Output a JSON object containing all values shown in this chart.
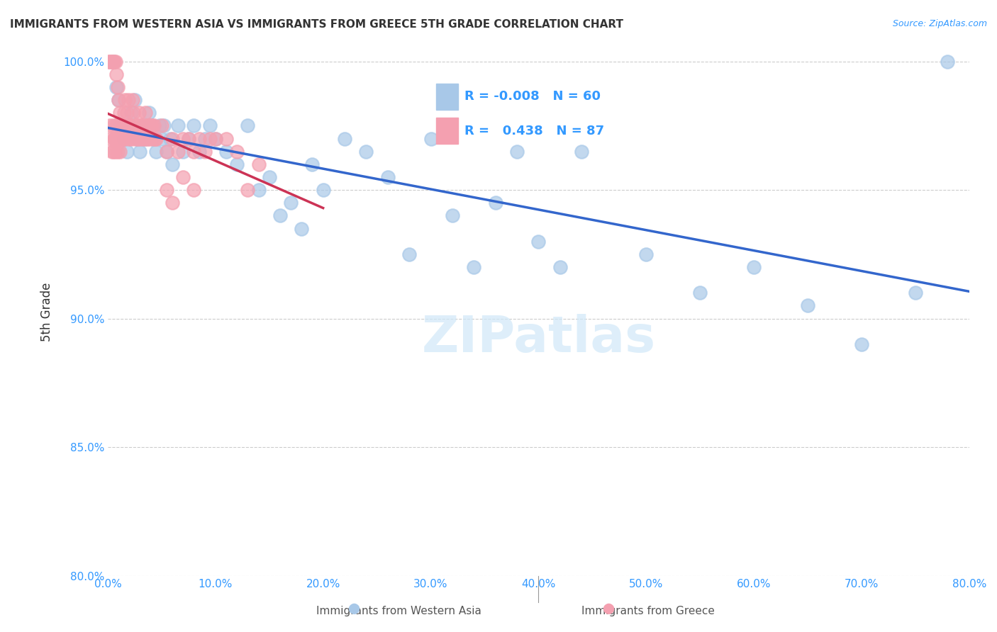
{
  "title": "IMMIGRANTS FROM WESTERN ASIA VS IMMIGRANTS FROM GREECE 5TH GRADE CORRELATION CHART",
  "source": "Source: ZipAtlas.com",
  "xlabel_bottom": "",
  "ylabel": "5th Grade",
  "legend_label1": "Immigrants from Western Asia",
  "legend_label2": "Immigrants from Greece",
  "r1": -0.008,
  "n1": 60,
  "r2": 0.438,
  "n2": 87,
  "color1": "#a8c8e8",
  "color2": "#f4a0b0",
  "trend_color1": "#3366cc",
  "trend_color2": "#cc3355",
  "xmin": 0.0,
  "xmax": 0.8,
  "ymin": 0.8,
  "ymax": 1.005,
  "xtick_labels": [
    "0.0%",
    "10.0%",
    "20.0%",
    "30.0%",
    "40.0%",
    "50.0%",
    "60.0%",
    "70.0%",
    "80.0%"
  ],
  "xtick_values": [
    0.0,
    0.1,
    0.2,
    0.3,
    0.4,
    0.5,
    0.6,
    0.7,
    0.8
  ],
  "ytick_labels": [
    "80.0%",
    "85.0%",
    "90.0%",
    "95.0%",
    "100.0%"
  ],
  "ytick_values": [
    0.8,
    0.85,
    0.9,
    0.95,
    1.0
  ],
  "western_asia_x": [
    0.005,
    0.008,
    0.01,
    0.012,
    0.015,
    0.018,
    0.02,
    0.022,
    0.025,
    0.028,
    0.03,
    0.032,
    0.035,
    0.038,
    0.04,
    0.042,
    0.045,
    0.048,
    0.05,
    0.052,
    0.055,
    0.058,
    0.06,
    0.065,
    0.07,
    0.075,
    0.08,
    0.085,
    0.09,
    0.095,
    0.1,
    0.11,
    0.12,
    0.13,
    0.14,
    0.15,
    0.16,
    0.17,
    0.18,
    0.19,
    0.2,
    0.22,
    0.24,
    0.26,
    0.28,
    0.3,
    0.32,
    0.34,
    0.36,
    0.38,
    0.4,
    0.42,
    0.44,
    0.5,
    0.55,
    0.6,
    0.65,
    0.7,
    0.75,
    0.78
  ],
  "western_asia_y": [
    1.0,
    0.99,
    0.985,
    0.975,
    0.97,
    0.965,
    0.975,
    0.98,
    0.985,
    0.97,
    0.965,
    0.975,
    0.97,
    0.98,
    0.975,
    0.97,
    0.965,
    0.975,
    0.97,
    0.975,
    0.965,
    0.97,
    0.96,
    0.975,
    0.965,
    0.97,
    0.975,
    0.965,
    0.97,
    0.975,
    0.97,
    0.965,
    0.96,
    0.975,
    0.95,
    0.955,
    0.94,
    0.945,
    0.935,
    0.96,
    0.95,
    0.97,
    0.965,
    0.955,
    0.925,
    0.97,
    0.94,
    0.92,
    0.945,
    0.965,
    0.93,
    0.92,
    0.965,
    0.925,
    0.91,
    0.92,
    0.905,
    0.89,
    0.91,
    1.0
  ],
  "greece_x": [
    0.001,
    0.002,
    0.003,
    0.004,
    0.005,
    0.006,
    0.007,
    0.008,
    0.009,
    0.01,
    0.011,
    0.012,
    0.013,
    0.014,
    0.015,
    0.016,
    0.017,
    0.018,
    0.019,
    0.02,
    0.021,
    0.022,
    0.023,
    0.024,
    0.025,
    0.026,
    0.027,
    0.028,
    0.029,
    0.03,
    0.031,
    0.032,
    0.033,
    0.034,
    0.035,
    0.036,
    0.037,
    0.038,
    0.039,
    0.04,
    0.041,
    0.042,
    0.043,
    0.044,
    0.045,
    0.05,
    0.055,
    0.06,
    0.065,
    0.07,
    0.075,
    0.08,
    0.085,
    0.09,
    0.095,
    0.1,
    0.11,
    0.12,
    0.13,
    0.14,
    0.002,
    0.003,
    0.004,
    0.005,
    0.006,
    0.007,
    0.008,
    0.009,
    0.01,
    0.011,
    0.012,
    0.013,
    0.014,
    0.015,
    0.016,
    0.017,
    0.055,
    0.06,
    0.07,
    0.08,
    0.005,
    0.006,
    0.007,
    0.008,
    0.009,
    0.01,
    0.011
  ],
  "greece_y": [
    1.0,
    1.0,
    1.0,
    1.0,
    1.0,
    1.0,
    1.0,
    0.995,
    0.99,
    0.985,
    0.98,
    0.975,
    0.97,
    0.975,
    0.98,
    0.985,
    0.975,
    0.98,
    0.985,
    0.97,
    0.975,
    0.97,
    0.985,
    0.98,
    0.975,
    0.97,
    0.975,
    0.97,
    0.98,
    0.97,
    0.975,
    0.97,
    0.975,
    0.97,
    0.98,
    0.975,
    0.97,
    0.975,
    0.97,
    0.975,
    0.975,
    0.97,
    0.975,
    0.97,
    0.97,
    0.975,
    0.965,
    0.97,
    0.965,
    0.97,
    0.97,
    0.965,
    0.97,
    0.965,
    0.97,
    0.97,
    0.97,
    0.965,
    0.95,
    0.96,
    0.975,
    0.97,
    0.965,
    0.975,
    0.97,
    0.965,
    0.97,
    0.975,
    0.97,
    0.965,
    0.97,
    0.975,
    0.97,
    0.975,
    0.97,
    0.975,
    0.95,
    0.945,
    0.955,
    0.95,
    0.965,
    0.97,
    0.975,
    0.97,
    0.965,
    0.97,
    0.975
  ],
  "watermark": "ZIPatlas",
  "background_color": "#ffffff",
  "grid_color": "#cccccc",
  "title_color": "#333333",
  "axis_color": "#3399ff",
  "legend_box_color": "#ffffff"
}
